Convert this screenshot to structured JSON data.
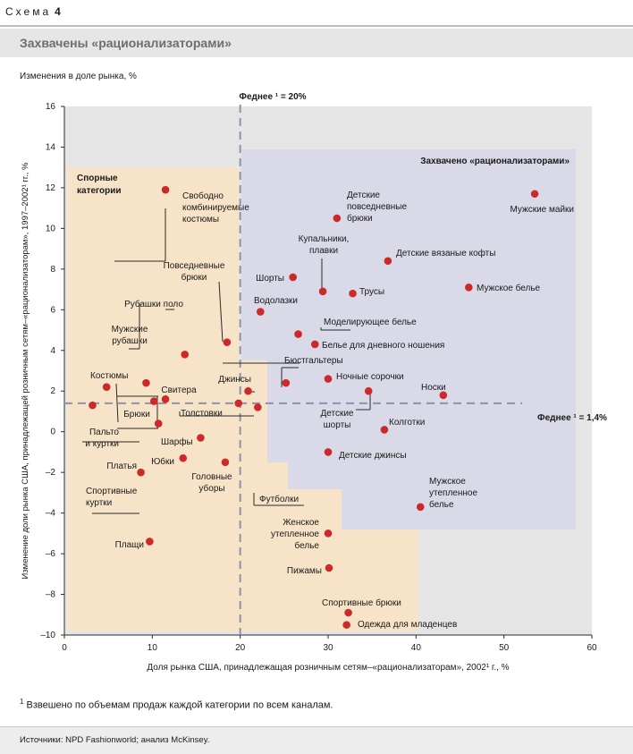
{
  "header": {
    "scheme_label": "Схема",
    "scheme_number": "4",
    "title": "Захвачены «рационализаторами»"
  },
  "chart_data": {
    "type": "scatter",
    "title": "Захвачены «рационализаторами»",
    "subtitle": "Изменения в доле рынка, %",
    "xlabel": "Доля рынка США, принадлежащая розничным сетям–«рационализаторам», 2002¹ г., %",
    "ylabel": "Изменение доли рынка США, принадлежащей розничным сетям–«рационализаторам», 1997–2002¹ гг., %",
    "xlim": [
      0,
      60
    ],
    "ylim": [
      -10,
      16
    ],
    "x_ticks": [
      "0",
      "10",
      "20",
      "30",
      "40",
      "50",
      "60"
    ],
    "y_ticks": [
      "16",
      "14",
      "12",
      "10",
      "8",
      "6",
      "4",
      "2",
      "0",
      "–2",
      "–4",
      "–6",
      "–8",
      "–10"
    ],
    "grid": false,
    "mean_x": {
      "value": 20,
      "label": "Феднее ¹ = 20%"
    },
    "mean_y": {
      "value": 1.4,
      "label": "Феднее ¹ = 1,4%"
    },
    "regions": [
      {
        "name": "Спорные категории",
        "color": "#f7e4c8"
      },
      {
        "name": "Захвачено «рационализаторами»",
        "color": "#d9d9e8"
      }
    ],
    "points": [
      {
        "label": "Свободно комбинируемые костюмы",
        "x": 11.5,
        "y": 11.9
      },
      {
        "label": "Повседневные брюки",
        "x": 18.5,
        "y": 4.4
      },
      {
        "label": "Рубашки поло",
        "x": 13.7,
        "y": 3.8
      },
      {
        "label": "Мужские рубашки",
        "x": 9.3,
        "y": 2.4
      },
      {
        "label": "Костюмы",
        "x": 4.8,
        "y": 2.2
      },
      {
        "label": "Свитера",
        "x": 11.5,
        "y": 1.6
      },
      {
        "label": "Брюки",
        "x": 10.2,
        "y": 1.5
      },
      {
        "label": "Пальто и куртки",
        "x": 10.7,
        "y": 0.4
      },
      {
        "label": "Спортивные куртки",
        "x": 3.2,
        "y": 1.3
      },
      {
        "label": "Платья",
        "x": 8.7,
        "y": -2.0
      },
      {
        "label": "Шарфы",
        "x": 15.5,
        "y": -0.3
      },
      {
        "label": "Юбки",
        "x": 13.5,
        "y": -1.3
      },
      {
        "label": "Головные уборы",
        "x": 18.3,
        "y": -1.5
      },
      {
        "label": "Джинсы",
        "x": 20.9,
        "y": 2.0
      },
      {
        "label": "Толстовки",
        "x": 19.8,
        "y": 1.4
      },
      {
        "label": "Футболки",
        "x": 22.0,
        "y": 1.2
      },
      {
        "label": "Плащи",
        "x": 9.7,
        "y": -5.4
      },
      {
        "label": "Детские повседневные брюки",
        "x": 31.0,
        "y": 10.5
      },
      {
        "label": "Мужские майки",
        "x": 53.5,
        "y": 11.7
      },
      {
        "label": "Купальники, плавки",
        "x": 29.4,
        "y": 6.9
      },
      {
        "label": "Шорты",
        "x": 26.0,
        "y": 7.6
      },
      {
        "label": "Трусы",
        "x": 32.8,
        "y": 6.8
      },
      {
        "label": "Детские вязаные кофты",
        "x": 36.8,
        "y": 8.4
      },
      {
        "label": "Мужское белье",
        "x": 46.0,
        "y": 7.1
      },
      {
        "label": "Водолазки",
        "x": 22.3,
        "y": 5.9
      },
      {
        "label": "Моделирующее белье",
        "x": 26.6,
        "y": 4.8
      },
      {
        "label": "Белье для дневного ношения",
        "x": 28.5,
        "y": 4.3
      },
      {
        "label": "Бюстгальтеры",
        "x": 25.2,
        "y": 2.4
      },
      {
        "label": "Ночные сорочки",
        "x": 30.0,
        "y": 2.6
      },
      {
        "label": "Детские шорты",
        "x": 34.6,
        "y": 2.0
      },
      {
        "label": "Носки",
        "x": 43.1,
        "y": 1.8
      },
      {
        "label": "Колготки",
        "x": 36.4,
        "y": 0.1
      },
      {
        "label": "Детские джинсы",
        "x": 30.0,
        "y": -1.0
      },
      {
        "label": "Мужское утепленное белье",
        "x": 40.5,
        "y": -3.7
      },
      {
        "label": "Женское утепленное белье",
        "x": 30.0,
        "y": -5.0
      },
      {
        "label": "Пижамы",
        "x": 30.1,
        "y": -6.7
      },
      {
        "label": "Спортивные брюки",
        "x": 32.3,
        "y": -8.9
      },
      {
        "label": "Одежда для младенцев",
        "x": 32.1,
        "y": -9.5
      }
    ]
  },
  "footnote": {
    "marker": "1",
    "text": "Взвешено по объемам продаж каждой категории по всем каналам."
  },
  "source": "Источники: NPD Fashionworld; анализ McKinsey.",
  "colors": {
    "point": "#cc2a2a",
    "plot_bg": "#e5e5e5",
    "contested": "#f7e4c8",
    "captured": "#d9d9e8",
    "mean_line": "#8c93a8"
  }
}
